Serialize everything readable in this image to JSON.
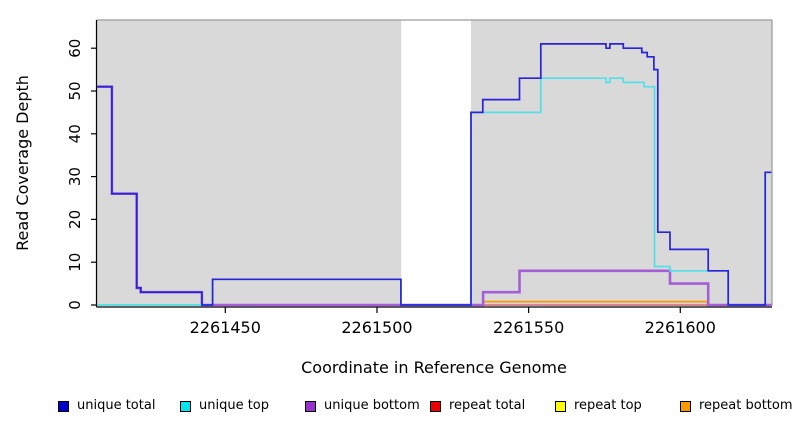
{
  "chart": {
    "ylabel": "Read Coverage Depth",
    "xlabel": "Coordinate in Reference Genome",
    "panel_bg": "#d9d9d9",
    "gap_band_color": "#ffffff",
    "border_color": "#9a9a9a",
    "axis_color": "#000000",
    "y_ticks": [
      "0",
      "10",
      "20",
      "30",
      "40",
      "50",
      "60"
    ],
    "x_ticks": [
      "2261450",
      "2261500",
      "2261550",
      "2261600"
    ]
  },
  "legend": {
    "items": [
      {
        "label": "unique total",
        "color": "#0000cd"
      },
      {
        "label": "unique top",
        "color": "#00e5ee"
      },
      {
        "label": "unique bottom",
        "color": "#9932cc"
      },
      {
        "label": "repeat total",
        "color": "#ee0000"
      },
      {
        "label": "repeat top",
        "color": "#ffff00"
      },
      {
        "label": "repeat bottom",
        "color": "#ff9900"
      }
    ]
  },
  "chart_data": {
    "type": "line",
    "subtype": "step-coverage",
    "title": "",
    "xlabel": "Coordinate in Reference Genome",
    "ylabel": "Read Coverage Depth",
    "xlim": [
      2261407.7,
      2261630
    ],
    "ylim": [
      0,
      66.5
    ],
    "x_tick_values": [
      2261450,
      2261500,
      2261550,
      2261600
    ],
    "y_tick_values": [
      0,
      10,
      20,
      30,
      40,
      50,
      60
    ],
    "grid": false,
    "legend_position": "bottom",
    "no_data_gap": {
      "start": 2261508,
      "end": 2261531
    },
    "series": [
      {
        "name": "repeat total",
        "legend_color": "#ee0000",
        "line_color": "#d5506b",
        "width": 1.3,
        "points": [
          [
            2261442.3,
            0
          ]
        ],
        "end": 2261630
      },
      {
        "name": "repeat top",
        "legend_color": "#ffff00",
        "line_color": "#86c97e",
        "width": 1.5,
        "points": [
          [
            2261407.7,
            0
          ]
        ],
        "end": 2261442.3
      },
      {
        "name": "repeat bottom",
        "legend_color": "#ff9900",
        "line_color": "#ff9803",
        "width": 1.8,
        "points": [
          [
            2261535,
            0.8
          ],
          [
            2261609,
            0
          ]
        ],
        "end": 2261610
      },
      {
        "name": "unique bottom",
        "legend_color": "#9932cc",
        "line_color": "#a55fd6",
        "width": 2.6,
        "points": [
          [
            2261407.7,
            51
          ],
          [
            2261412.6,
            26
          ],
          [
            2261420.8,
            4
          ],
          [
            2261422.1,
            3
          ],
          [
            2261442.3,
            0
          ],
          [
            2261535,
            3
          ],
          [
            2261547,
            8
          ],
          [
            2261596.6,
            5
          ],
          [
            2261609.2,
            0
          ]
        ],
        "end": 2261630
      },
      {
        "name": "unique top",
        "legend_color": "#00e5ee",
        "line_color": "#52dfe8",
        "width": 1.7,
        "points": [
          [
            2261407.7,
            0
          ],
          [
            2261445.8,
            6
          ],
          [
            2261507.9,
            0
          ],
          [
            2261531,
            45
          ],
          [
            2261554,
            53
          ],
          [
            2261575.5,
            52
          ],
          [
            2261576.8,
            53
          ],
          [
            2261581.2,
            52
          ],
          [
            2261588,
            51
          ],
          [
            2261591.5,
            9
          ],
          [
            2261596.6,
            8
          ],
          [
            2261615.8,
            0
          ],
          [
            2261628,
            31
          ]
        ],
        "end": 2261630
      },
      {
        "name": "unique total",
        "legend_color": "#0000cd",
        "line_color": "#2a23d9",
        "width": 1.7,
        "points": [
          [
            2261407.7,
            51
          ],
          [
            2261412.6,
            26
          ],
          [
            2261420.8,
            4
          ],
          [
            2261422.1,
            3
          ],
          [
            2261442.3,
            0
          ],
          [
            2261445.8,
            6
          ],
          [
            2261507.9,
            0
          ],
          [
            2261531,
            45
          ],
          [
            2261534.9,
            48
          ],
          [
            2261547,
            53
          ],
          [
            2261554,
            61
          ],
          [
            2261575.5,
            60
          ],
          [
            2261576.8,
            61
          ],
          [
            2261581.2,
            60
          ],
          [
            2261587.3,
            59
          ],
          [
            2261589.1,
            58
          ],
          [
            2261591.3,
            55
          ],
          [
            2261592.6,
            17
          ],
          [
            2261596.6,
            13
          ],
          [
            2261609.2,
            8
          ],
          [
            2261615.8,
            0
          ],
          [
            2261628,
            31
          ]
        ],
        "end": 2261630
      }
    ]
  }
}
